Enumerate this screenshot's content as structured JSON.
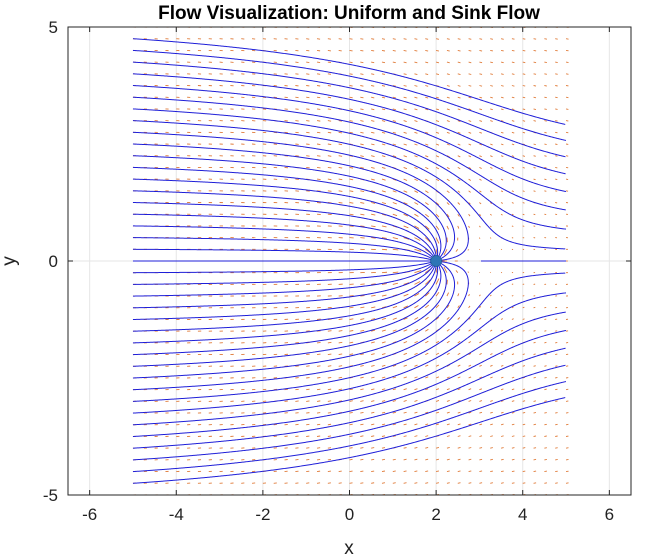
{
  "chart_data": {
    "type": "streamline",
    "title": "Flow Visualization: Uniform and Sink Flow",
    "xlabel": "x",
    "ylabel": "y",
    "xlim": [
      -6.5,
      6.5
    ],
    "ylim": [
      -5,
      5
    ],
    "xticks": [
      -6,
      -4,
      -2,
      0,
      2,
      4,
      6
    ],
    "yticks": [
      -5,
      0,
      5
    ],
    "xtick_labels": [
      "-6",
      "-4",
      "-2",
      "0",
      "2",
      "4",
      "6"
    ],
    "ytick_labels": [
      "-5",
      "0",
      "5"
    ],
    "grid": true,
    "flow": {
      "uniform_velocity": 1,
      "sink_x": 2,
      "sink_y": 0,
      "sink_strength": 6.5
    },
    "domain": {
      "x": [
        -5,
        5
      ],
      "y": [
        -5,
        5
      ]
    },
    "streamline_seed_x": -5,
    "streamline_seed_spacing": 0.25,
    "quiver_spacing": 0.25,
    "sink_marker": {
      "x": 2,
      "y": 0
    },
    "colors": {
      "streamline": "#1f1fd8",
      "quiver": "#e07b39",
      "sink_marker": "#2e75b6",
      "grid": "#e6e6e6",
      "axes": "#262626"
    }
  }
}
